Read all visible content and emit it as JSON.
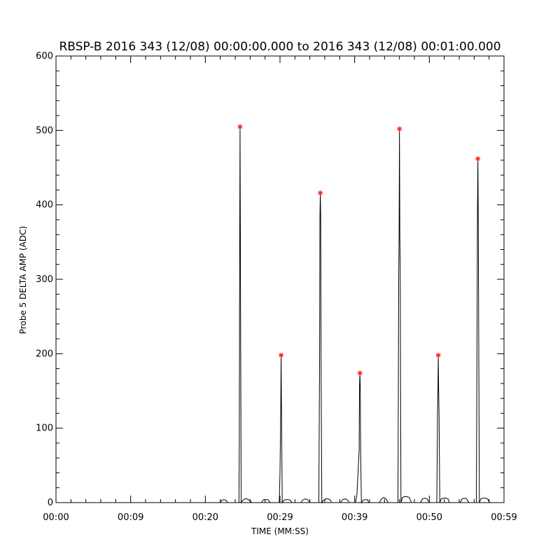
{
  "chart_data": {
    "type": "line",
    "title": "RBSP-B 2016 343 (12/08) 00:00:00.000 to 2016 343 (12/08) 00:01:00.000",
    "xlabel": "TIME (MM:SS)",
    "ylabel": "Probe 5 DELTA AMP (ADC)",
    "xlim": [
      0,
      60
    ],
    "ylim": [
      0,
      600
    ],
    "x_ticks": [
      {
        "value": 0,
        "label": "00:00"
      },
      {
        "value": 10,
        "label": "00:09"
      },
      {
        "value": 20,
        "label": "00:20"
      },
      {
        "value": 30,
        "label": "00:29"
      },
      {
        "value": 40,
        "label": "00:39"
      },
      {
        "value": 50,
        "label": "00:50"
      },
      {
        "value": 60,
        "label": "00:59"
      }
    ],
    "y_ticks": [
      {
        "value": 0,
        "label": "0"
      },
      {
        "value": 100,
        "label": "100"
      },
      {
        "value": 200,
        "label": "200"
      },
      {
        "value": 300,
        "label": "300"
      },
      {
        "value": 400,
        "label": "400"
      },
      {
        "value": 500,
        "label": "500"
      },
      {
        "value": 600,
        "label": "600"
      }
    ],
    "series": [
      {
        "color": "#000000",
        "x": [
          0,
          22.0,
          22.2,
          22.5,
          22.8,
          23.0,
          24.5,
          24.55,
          24.6,
          24.65,
          24.7,
          24.8,
          25.0,
          25.3,
          25.6,
          25.9,
          26.2,
          27.5,
          27.8,
          28.1,
          28.4,
          28.7,
          29.9,
          30.0,
          30.1,
          30.15,
          30.2,
          30.3,
          30.5,
          30.8,
          31.1,
          31.4,
          31.6,
          32.8,
          33.1,
          33.4,
          33.7,
          34.0,
          35.2,
          35.3,
          35.35,
          35.4,
          35.45,
          35.5,
          35.6,
          35.8,
          36.1,
          36.4,
          36.7,
          36.9,
          38.1,
          38.4,
          38.7,
          39.0,
          39.3,
          40.1,
          40.3,
          40.6,
          40.65,
          40.7,
          40.75,
          40.8,
          40.9,
          41.1,
          41.4,
          41.7,
          41.9,
          43.3,
          43.6,
          43.9,
          44.2,
          44.5,
          45.8,
          45.9,
          45.95,
          46.0,
          46.05,
          46.1,
          46.2,
          46.4,
          46.7,
          47.0,
          47.3,
          47.6,
          48.8,
          49.1,
          49.4,
          49.7,
          50.0,
          51.0,
          51.1,
          51.15,
          51.2,
          51.25,
          51.3,
          51.4,
          51.6,
          51.9,
          52.2,
          52.5,
          52.7,
          54.1,
          54.4,
          54.7,
          55.0,
          55.3,
          56.3,
          56.4,
          56.45,
          56.5,
          56.55,
          56.6,
          56.7,
          56.9,
          57.2,
          57.5,
          57.8,
          58.1,
          60
        ],
        "y": [
          0,
          0,
          3,
          4,
          3,
          0,
          0,
          80,
          330,
          505,
          330,
          0,
          3,
          5,
          5,
          3,
          0,
          0,
          4,
          4,
          4,
          0,
          0,
          40,
          125,
          198,
          125,
          0,
          3,
          4,
          4,
          3,
          0,
          0,
          4,
          5,
          4,
          0,
          0,
          190,
          385,
          416,
          385,
          190,
          0,
          3,
          5,
          5,
          4,
          0,
          0,
          4,
          5,
          4,
          0,
          0,
          10,
          70,
          155,
          174,
          155,
          70,
          0,
          3,
          4,
          4,
          0,
          0,
          5,
          7,
          5,
          0,
          0,
          310,
          360,
          502,
          360,
          310,
          0,
          7,
          8,
          8,
          7,
          0,
          0,
          5,
          6,
          5,
          0,
          0,
          120,
          150,
          198,
          150,
          120,
          0,
          5,
          6,
          6,
          5,
          0,
          0,
          5,
          6,
          5,
          0,
          0,
          260,
          390,
          462,
          390,
          260,
          0,
          5,
          6,
          6,
          5,
          0,
          0
        ]
      }
    ],
    "peak_markers": {
      "color": "#ff2020",
      "x": [
        24.65,
        30.15,
        35.4,
        40.7,
        46.0,
        51.2,
        56.5
      ],
      "y": [
        505,
        198,
        416,
        174,
        502,
        198,
        462
      ]
    }
  }
}
